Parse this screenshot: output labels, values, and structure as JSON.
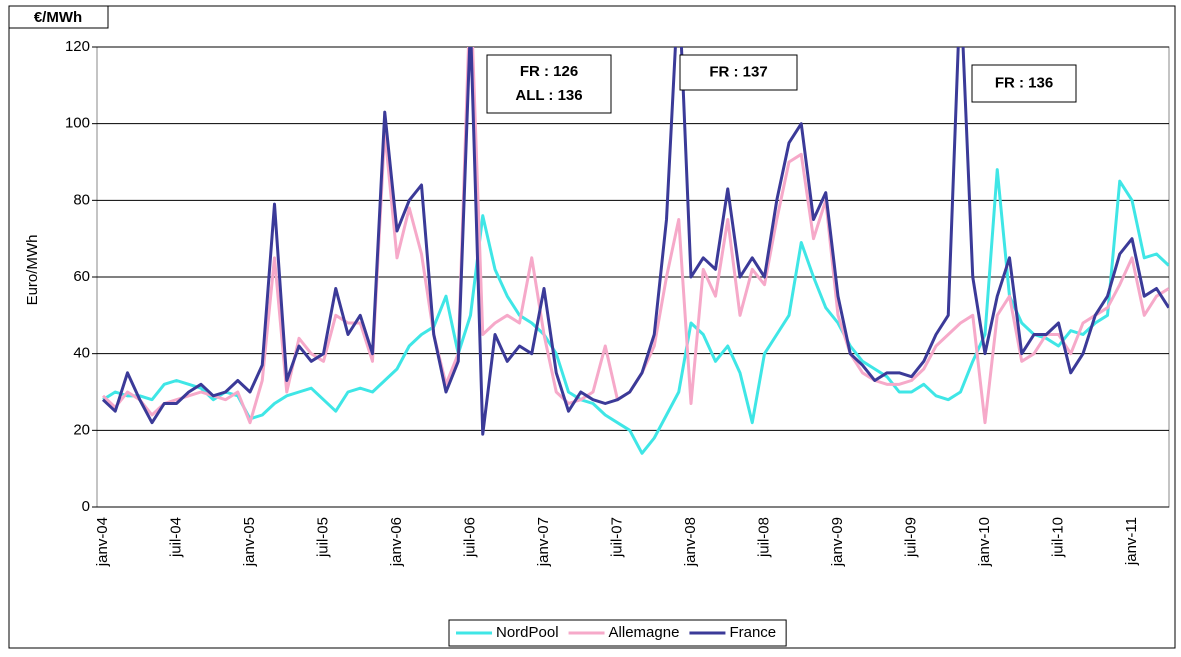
{
  "chart_data": {
    "type": "line",
    "unit_label": "€/MWh",
    "y_axis_label": "Euro/MWh",
    "ylim": [
      0,
      120
    ],
    "yticks": [
      0,
      20,
      40,
      60,
      80,
      100,
      120
    ],
    "grid": true,
    "legend": "bottom",
    "categories": [
      "janv-04",
      null,
      null,
      null,
      null,
      null,
      "juil-04",
      null,
      null,
      null,
      null,
      null,
      "janv-05",
      null,
      null,
      null,
      null,
      null,
      "juil-05",
      null,
      null,
      null,
      null,
      null,
      "janv-06",
      null,
      null,
      null,
      null,
      null,
      "juil-06",
      null,
      null,
      null,
      null,
      null,
      "janv-07",
      null,
      null,
      null,
      null,
      null,
      "juil-07",
      null,
      null,
      null,
      null,
      null,
      "janv-08",
      null,
      null,
      null,
      null,
      null,
      "juil-08",
      null,
      null,
      null,
      null,
      null,
      "janv-09",
      null,
      null,
      null,
      null,
      null,
      "juil-09",
      null,
      null,
      null,
      null,
      null,
      "janv-10",
      null,
      null,
      null,
      null,
      null,
      "juil-10",
      null,
      null,
      null,
      null,
      null,
      "janv-11",
      null,
      null,
      null
    ],
    "series": [
      {
        "name": "NordPool",
        "color": "#3fe6e6",
        "values": [
          28,
          30,
          29,
          29,
          28,
          32,
          33,
          32,
          31,
          28,
          30,
          29,
          23,
          24,
          27,
          29,
          30,
          31,
          28,
          25,
          30,
          31,
          30,
          33,
          36,
          42,
          45,
          47,
          55,
          40,
          50,
          76,
          62,
          55,
          50,
          48,
          45,
          40,
          30,
          28,
          27,
          24,
          22,
          20,
          14,
          18,
          24,
          30,
          48,
          45,
          38,
          42,
          35,
          22,
          40,
          45,
          50,
          69,
          60,
          52,
          48,
          42,
          38,
          36,
          34,
          30,
          30,
          32,
          29,
          28,
          30,
          38,
          45,
          88,
          55,
          48,
          45,
          44,
          42,
          46,
          45,
          48,
          50,
          85,
          80,
          65,
          66,
          63
        ]
      },
      {
        "name": "Allemagne",
        "color": "#f6a9c9",
        "values": [
          29,
          26,
          30,
          28,
          24,
          27,
          28,
          29,
          30,
          29,
          28,
          30,
          22,
          33,
          65,
          30,
          44,
          40,
          38,
          50,
          48,
          48,
          38,
          98,
          65,
          78,
          66,
          45,
          32,
          40,
          136,
          45,
          48,
          50,
          48,
          65,
          45,
          30,
          27,
          28,
          30,
          42,
          28,
          30,
          35,
          42,
          60,
          75,
          27,
          62,
          55,
          75,
          50,
          62,
          58,
          75,
          90,
          92,
          70,
          80,
          50,
          40,
          35,
          33,
          32,
          32,
          33,
          36,
          42,
          45,
          48,
          50,
          22,
          50,
          55,
          38,
          40,
          45,
          45,
          40,
          48,
          50,
          52,
          58,
          65,
          50,
          55,
          57
        ]
      },
      {
        "name": "France",
        "color": "#3b3a98",
        "values": [
          28,
          25,
          35,
          28,
          22,
          27,
          27,
          30,
          32,
          29,
          30,
          33,
          30,
          37,
          79,
          33,
          42,
          38,
          40,
          57,
          45,
          50,
          40,
          103,
          72,
          80,
          84,
          45,
          30,
          38,
          126,
          19,
          45,
          38,
          42,
          40,
          57,
          35,
          25,
          30,
          28,
          27,
          28,
          30,
          35,
          45,
          75,
          137,
          60,
          65,
          62,
          83,
          60,
          65,
          60,
          80,
          95,
          100,
          75,
          82,
          55,
          40,
          37,
          33,
          35,
          35,
          34,
          38,
          45,
          50,
          136,
          60,
          40,
          55,
          65,
          40,
          45,
          45,
          48,
          35,
          40,
          50,
          55,
          66,
          70,
          55,
          57,
          52
        ]
      }
    ],
    "annotations": [
      {
        "lines": [
          "FR : 126",
          "ALL : 136"
        ]
      },
      {
        "lines": [
          "FR : 137"
        ]
      },
      {
        "lines": [
          "FR : 136"
        ]
      }
    ]
  }
}
